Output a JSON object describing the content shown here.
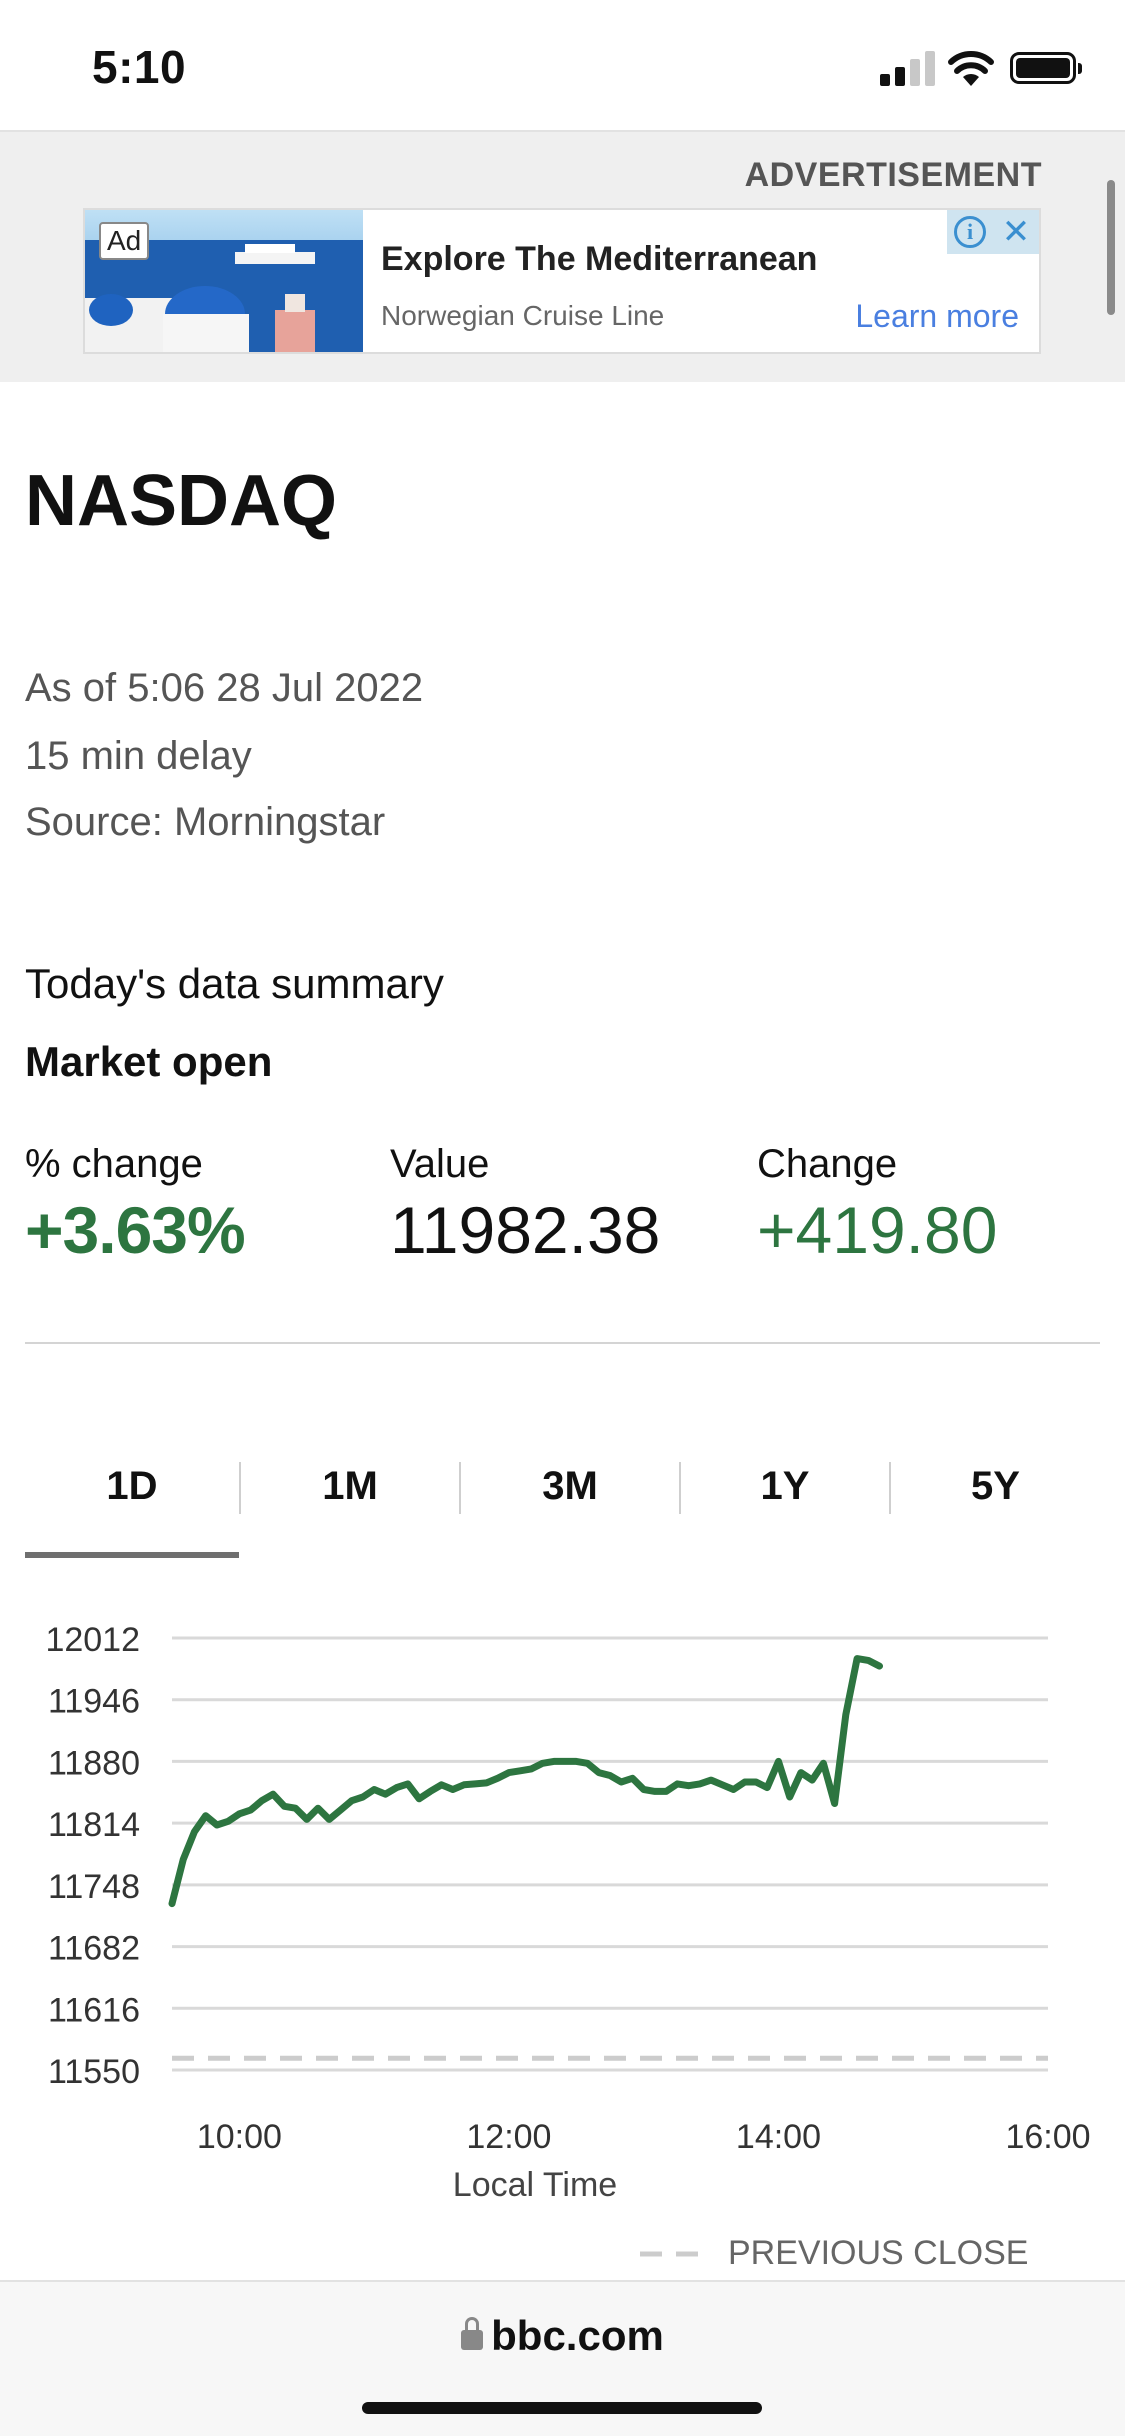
{
  "status_bar": {
    "time": "5:10"
  },
  "ad": {
    "section_label": "ADVERTISEMENT",
    "badge": "Ad",
    "title": "Explore The Mediterranean",
    "advertiser": "Norwegian Cruise Line",
    "cta": "Learn more",
    "info_icon": "info-icon",
    "close_icon": "close-icon"
  },
  "page": {
    "title": "NASDAQ",
    "as_of": "As of 5:06 28 Jul 2022",
    "delay": "15 min delay",
    "source": "Source: Morningstar"
  },
  "summary": {
    "title": "Today's data summary",
    "status": "Market open",
    "percent_change_label": "% change",
    "percent_change_value": "+3.63%",
    "value_label": "Value",
    "value": "11982.38",
    "change_label": "Change",
    "change_value": "+419.80"
  },
  "tabs": [
    {
      "label": "1D",
      "active": true
    },
    {
      "label": "1M",
      "active": false
    },
    {
      "label": "3M",
      "active": false
    },
    {
      "label": "1Y",
      "active": false
    },
    {
      "label": "5Y",
      "active": false
    }
  ],
  "chart_data": {
    "type": "line",
    "xlabel": "Local Time",
    "ylabel": "",
    "x_ticks": [
      "10:00",
      "12:00",
      "14:00",
      "16:00"
    ],
    "y_ticks": [
      12012,
      11946,
      11880,
      11814,
      11748,
      11682,
      11616,
      11550
    ],
    "xlim": [
      "09:30",
      "16:00"
    ],
    "ylim": [
      11550,
      12012
    ],
    "grid": true,
    "legend": {
      "placement": "bottom-right",
      "label": "PREVIOUS CLOSE"
    },
    "previous_close": 11562.6,
    "line_color": "#2d7540",
    "previous_close_color": "#cccccc",
    "series": [
      {
        "x": [
          "09:30",
          "09:35",
          "09:40",
          "09:45",
          "09:50",
          "09:55",
          "10:00",
          "10:05",
          "10:10",
          "10:15",
          "10:20",
          "10:25",
          "10:30",
          "10:35",
          "10:40",
          "10:45",
          "10:50",
          "10:55",
          "11:00",
          "11:05",
          "11:10",
          "11:15",
          "11:20",
          "11:25",
          "11:30",
          "11:35",
          "11:40",
          "11:45",
          "11:50",
          "11:55",
          "12:00",
          "12:05",
          "12:10",
          "12:15",
          "12:20",
          "12:25",
          "12:30",
          "12:35",
          "12:40",
          "12:45",
          "12:50",
          "12:55",
          "13:00",
          "13:05",
          "13:10",
          "13:15",
          "13:20",
          "13:25",
          "13:30",
          "13:35",
          "13:40",
          "13:45",
          "13:50",
          "13:55",
          "14:00",
          "14:05",
          "14:10",
          "14:15",
          "14:20",
          "14:25",
          "14:30",
          "14:35",
          "14:40",
          "14:45"
        ],
        "values": [
          11728,
          11775,
          11805,
          11822,
          11812,
          11816,
          11824,
          11828,
          11838,
          11845,
          11832,
          11830,
          11818,
          11830,
          11818,
          11828,
          11838,
          11842,
          11850,
          11845,
          11852,
          11856,
          11840,
          11848,
          11855,
          11850,
          11855,
          11856,
          11857,
          11862,
          11868,
          11870,
          11872,
          11878,
          11880,
          11880,
          11880,
          11878,
          11868,
          11865,
          11858,
          11862,
          11850,
          11848,
          11848,
          11856,
          11854,
          11856,
          11860,
          11855,
          11850,
          11858,
          11858,
          11852,
          11880,
          11842,
          11868,
          11860,
          11878,
          11835,
          11930,
          11990,
          11988,
          11982
        ]
      }
    ]
  },
  "bottom_bar": {
    "url": "bbc.com"
  },
  "colors": {
    "positive": "#2d7540",
    "ad_link": "#4a7fe0",
    "grid": "#d9d9d9"
  }
}
